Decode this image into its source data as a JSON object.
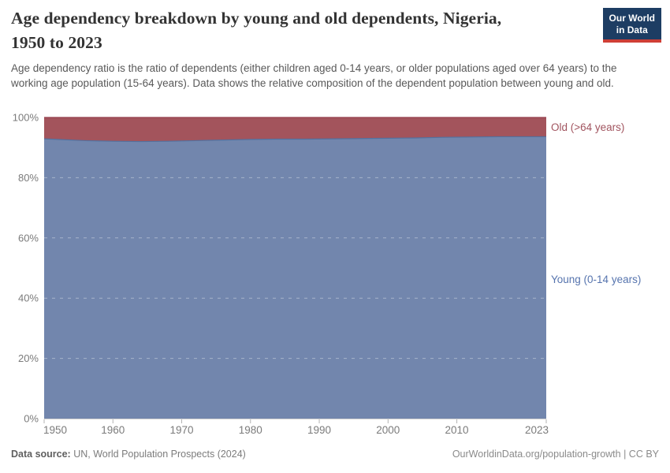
{
  "header": {
    "title_lines": [
      "Age dependency breakdown by young and old dependents, Nigeria,",
      "1950 to 2023"
    ],
    "subtitle": "Age dependency ratio is the ratio of dependents (either children aged 0-14 years, or older populations aged over 64 years) to the working age population (15-64 years). Data shows the relative composition of the dependent population between young and old.",
    "logo_lines": [
      "Our World",
      "in Data"
    ],
    "logo_colors": {
      "background": "#1D3D63",
      "bar": "#CF3F36"
    }
  },
  "footer": {
    "source_label": "Data source:",
    "source_value": " UN, World Population Prospects (2024)",
    "right_text": "OurWorldinData.org/population-growth | CC BY"
  },
  "chart_data": {
    "type": "area",
    "stacked": true,
    "unit": "%",
    "title": "Age dependency breakdown by young and old dependents, Nigeria, 1950 to 2023",
    "x": [
      1950,
      1953,
      1956,
      1960,
      1964,
      1968,
      1972,
      1976,
      1980,
      1984,
      1988,
      1992,
      1996,
      2000,
      2004,
      2008,
      2012,
      2016,
      2020,
      2023
    ],
    "series": [
      {
        "name": "Young (0-14 years)",
        "values": [
          92.9,
          92.6,
          92.3,
          92.1,
          92.0,
          92.1,
          92.3,
          92.5,
          92.7,
          92.8,
          92.8,
          92.9,
          93.0,
          93.1,
          93.2,
          93.4,
          93.5,
          93.6,
          93.6,
          93.6
        ],
        "color": "#7286AD",
        "line_color": "#53719F",
        "label_color": "#5674AE"
      },
      {
        "name": "Old (>64 years)",
        "values": [
          7.1,
          7.4,
          7.7,
          7.9,
          8.0,
          7.9,
          7.7,
          7.5,
          7.3,
          7.2,
          7.2,
          7.1,
          7.0,
          6.9,
          6.8,
          6.6,
          6.5,
          6.4,
          6.4,
          6.4
        ],
        "color": "#A3545C",
        "line_color": "#953F4B",
        "label_color": "#A1545F"
      }
    ],
    "xlim": [
      1950,
      2023
    ],
    "ylim": [
      0,
      100
    ],
    "x_ticks": [
      1950,
      1960,
      1970,
      1980,
      1990,
      2000,
      2010,
      2023
    ],
    "y_ticks": [
      0,
      20,
      40,
      60,
      80,
      100
    ],
    "y_tick_suffix": "%",
    "grid": "dashed-horizontal",
    "legend_position": "right-of-plot",
    "axis_colors": {
      "tick_label": "#7B7B7B",
      "axis_line": "#CFCFCF",
      "tick_mark": "#B3B3B3",
      "grid_line": "rgba(255,255,255,0.38)"
    }
  }
}
